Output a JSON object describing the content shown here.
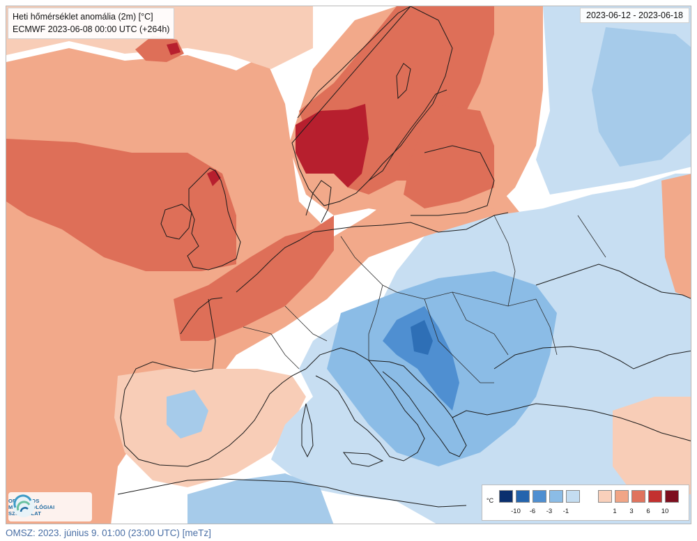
{
  "header": {
    "title": "Heti hőmérséklet anomália (2m) [°C]",
    "model_run": "ECMWF 2023-06-08 00:00 UTC (+264h)",
    "period": "2023-06-12 - 2023-06-18"
  },
  "logo": {
    "line1": "ORSZÁGOS",
    "line2": "METEOROLÓGIAI",
    "line3": "SZOLGÁLAT"
  },
  "legend": {
    "unit": "°C",
    "cold_colors": [
      "#0a2f6e",
      "#2464ad",
      "#4f8fd1",
      "#8bbce6",
      "#c4ddf1"
    ],
    "warm_colors": [
      "#f9d0bb",
      "#f1a586",
      "#e0735d",
      "#c3302f",
      "#7d0e1e"
    ],
    "cold_ticks": [
      "-10",
      "-6",
      "-3",
      "-1"
    ],
    "warm_ticks": [
      "1",
      "3",
      "6",
      "10"
    ]
  },
  "footer": {
    "text": "OMSZ: 2023. június 9. 01:00 (23:00  UTC)  [meTz]"
  }
}
